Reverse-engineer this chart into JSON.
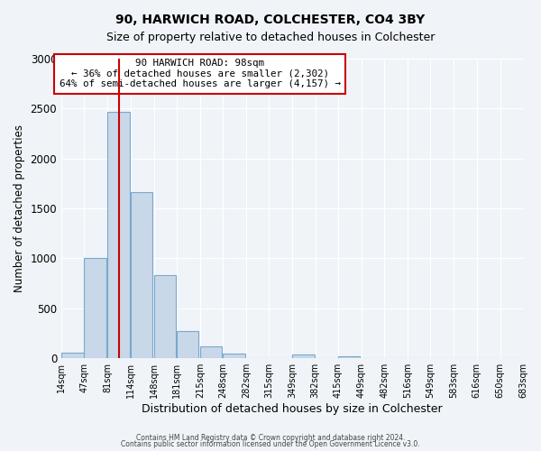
{
  "title1": "90, HARWICH ROAD, COLCHESTER, CO4 3BY",
  "title2": "Size of property relative to detached houses in Colchester",
  "xlabel": "Distribution of detached houses by size in Colchester",
  "ylabel": "Number of detached properties",
  "bar_color": "#c8d8e8",
  "bar_edge_color": "#7aa8cc",
  "bg_color": "#f0f4f8",
  "grid_color": "#ffffff",
  "vline_x": 98,
  "vline_color": "#cc0000",
  "annotation_line1": "90 HARWICH ROAD: 98sqm",
  "annotation_line2": "← 36% of detached houses are smaller (2,302)",
  "annotation_line3": "64% of semi-detached houses are larger (4,157) →",
  "annotation_box_color": "#ffffff",
  "annotation_box_edge": "#cc0000",
  "bins": [
    14,
    47,
    81,
    114,
    148,
    181,
    215,
    248,
    282,
    315,
    349,
    382,
    415,
    449,
    482,
    516,
    549,
    583,
    616,
    650,
    683
  ],
  "bin_labels": [
    "14sqm",
    "47sqm",
    "81sqm",
    "114sqm",
    "148sqm",
    "181sqm",
    "215sqm",
    "248sqm",
    "282sqm",
    "315sqm",
    "349sqm",
    "382sqm",
    "415sqm",
    "449sqm",
    "482sqm",
    "516sqm",
    "549sqm",
    "583sqm",
    "616sqm",
    "650sqm",
    "683sqm"
  ],
  "counts": [
    55,
    1000,
    2470,
    1660,
    830,
    270,
    120,
    45,
    0,
    0,
    35,
    0,
    20,
    0,
    0,
    0,
    0,
    0,
    0,
    0
  ],
  "ylim": [
    0,
    3000
  ],
  "yticks": [
    0,
    500,
    1000,
    1500,
    2000,
    2500,
    3000
  ],
  "footer1": "Contains HM Land Registry data © Crown copyright and database right 2024.",
  "footer2": "Contains public sector information licensed under the Open Government Licence v3.0."
}
